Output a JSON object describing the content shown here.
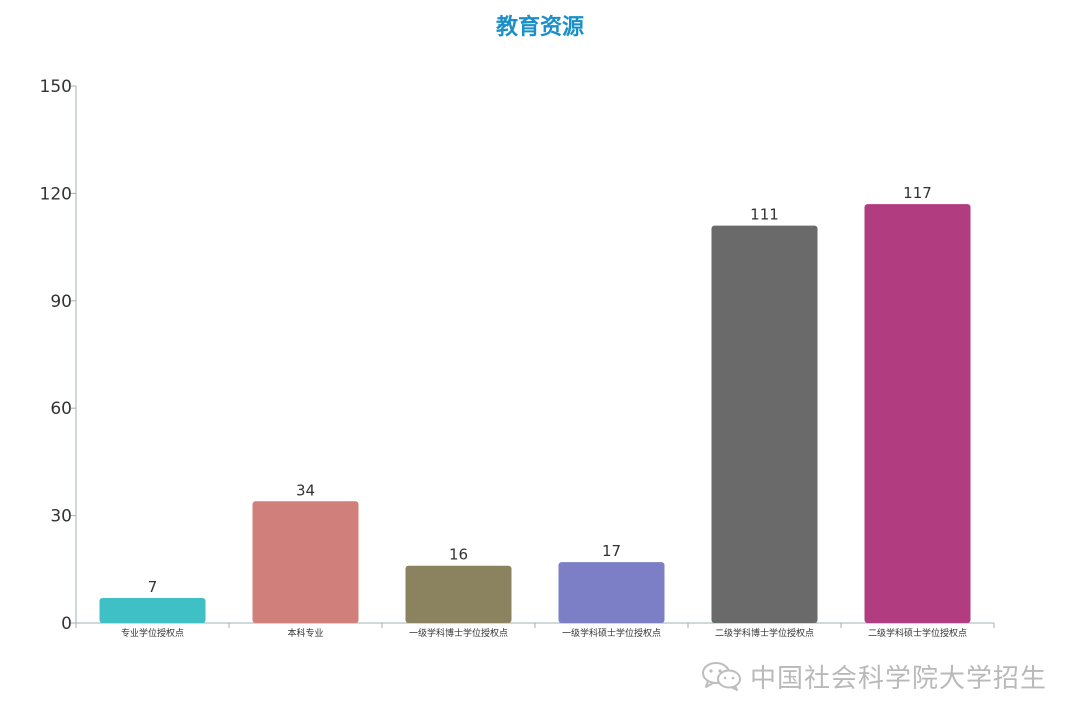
{
  "chart_data": {
    "type": "bar",
    "title": "教育资源",
    "categories": [
      "专业学位授权点",
      "本科专业",
      "一级学科博士学位授权点",
      "一级学科硕士学位授权点",
      "二级学科博士学位授权点",
      "二级学科硕士学位授权点"
    ],
    "values": [
      7,
      34,
      16,
      17,
      111,
      117
    ],
    "colors": [
      "#3ec0c4",
      "#d07f7a",
      "#8b835f",
      "#7c7fc6",
      "#6a6a6a",
      "#b13c80"
    ],
    "ylim": [
      0,
      150
    ],
    "yticks": [
      0,
      30,
      60,
      90,
      120,
      150
    ],
    "xlabel": "",
    "ylabel": "",
    "grid": false,
    "legend": "none",
    "data_labels": true
  },
  "watermark": {
    "text": "中国社会科学院大学招生",
    "icon": "wechat-icon"
  }
}
